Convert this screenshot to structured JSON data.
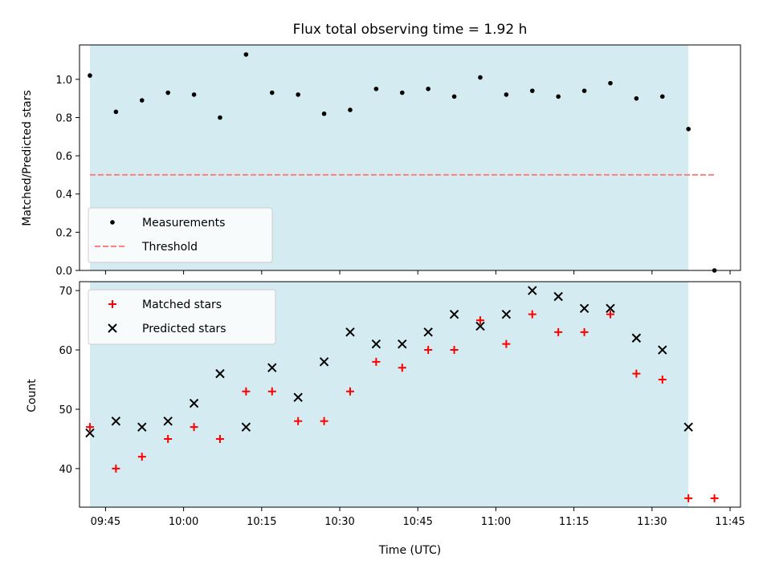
{
  "chart_data": [
    {
      "type": "scatter",
      "title": "Flux total observing time = 1.92 h",
      "xlabel": "",
      "ylabel": "Matched/Predicted stars",
      "xlim": [
        "09:40",
        "11:47"
      ],
      "ylim": [
        0,
        1.18
      ],
      "yticks": [
        0.0,
        0.2,
        0.4,
        0.6,
        0.8,
        1.0
      ],
      "ytick_labels": [
        "0.0",
        "0.2",
        "0.4",
        "0.6",
        "0.8",
        "1.0"
      ],
      "shaded_span": [
        "09:42",
        "11:37"
      ],
      "shade_color": "#d4ebf1",
      "legend": {
        "placement": "lower-left"
      },
      "series": [
        {
          "name": "Measurements",
          "kind": "scatter",
          "marker": "dot",
          "color": "#000000",
          "x": [
            "09:42",
            "09:47",
            "09:52",
            "09:57",
            "10:02",
            "10:07",
            "10:12",
            "10:17",
            "10:22",
            "10:27",
            "10:32",
            "10:37",
            "10:42",
            "10:47",
            "10:52",
            "10:57",
            "11:02",
            "11:07",
            "11:12",
            "11:17",
            "11:22",
            "11:27",
            "11:32",
            "11:37",
            "11:42"
          ],
          "y": [
            1.02,
            0.83,
            0.89,
            0.93,
            0.92,
            0.8,
            1.13,
            0.93,
            0.92,
            0.82,
            0.84,
            0.95,
            0.93,
            0.95,
            0.91,
            1.01,
            0.92,
            0.94,
            0.91,
            0.94,
            0.98,
            0.9,
            0.91,
            0.74,
            0.0
          ]
        },
        {
          "name": "Threshold",
          "kind": "line",
          "style": "dashed",
          "color": "#ff7f7f",
          "x": [
            "09:42",
            "11:42"
          ],
          "y": [
            0.5,
            0.5
          ]
        }
      ]
    },
    {
      "type": "scatter",
      "title": "",
      "xlabel": "Time (UTC)",
      "ylabel": "Count",
      "xlim": [
        "09:40",
        "11:47"
      ],
      "ylim": [
        33.5,
        71.5
      ],
      "xticks": [
        "09:45",
        "10:00",
        "10:15",
        "10:30",
        "10:45",
        "11:00",
        "11:15",
        "11:30",
        "11:45"
      ],
      "yticks": [
        40,
        50,
        60,
        70
      ],
      "ytick_labels": [
        "40",
        "50",
        "60",
        "70"
      ],
      "shaded_span": [
        "09:42",
        "11:37"
      ],
      "shade_color": "#d4ebf1",
      "legend": {
        "placement": "upper-left"
      },
      "series": [
        {
          "name": "Matched stars",
          "kind": "scatter",
          "marker": "plus",
          "color": "#ff0000",
          "x": [
            "09:42",
            "09:47",
            "09:52",
            "09:57",
            "10:02",
            "10:07",
            "10:12",
            "10:17",
            "10:22",
            "10:27",
            "10:32",
            "10:37",
            "10:42",
            "10:47",
            "10:52",
            "10:57",
            "11:02",
            "11:07",
            "11:12",
            "11:17",
            "11:22",
            "11:27",
            "11:32",
            "11:37",
            "11:42"
          ],
          "y": [
            47,
            40,
            42,
            45,
            47,
            45,
            53,
            53,
            48,
            48,
            53,
            58,
            57,
            60,
            60,
            65,
            61,
            66,
            63,
            63,
            66,
            56,
            55,
            35,
            35
          ]
        },
        {
          "name": "Predicted stars",
          "kind": "scatter",
          "marker": "x",
          "color": "#000000",
          "x": [
            "09:42",
            "09:47",
            "09:52",
            "09:57",
            "10:02",
            "10:07",
            "10:12",
            "10:17",
            "10:22",
            "10:27",
            "10:32",
            "10:37",
            "10:42",
            "10:47",
            "10:52",
            "10:57",
            "11:02",
            "11:07",
            "11:12",
            "11:17",
            "11:22",
            "11:27",
            "11:32",
            "11:37"
          ],
          "y": [
            46,
            48,
            47,
            48,
            51,
            56,
            47,
            57,
            52,
            58,
            63,
            61,
            61,
            63,
            66,
            64,
            66,
            70,
            69,
            67,
            67,
            62,
            60,
            47
          ]
        }
      ]
    }
  ]
}
